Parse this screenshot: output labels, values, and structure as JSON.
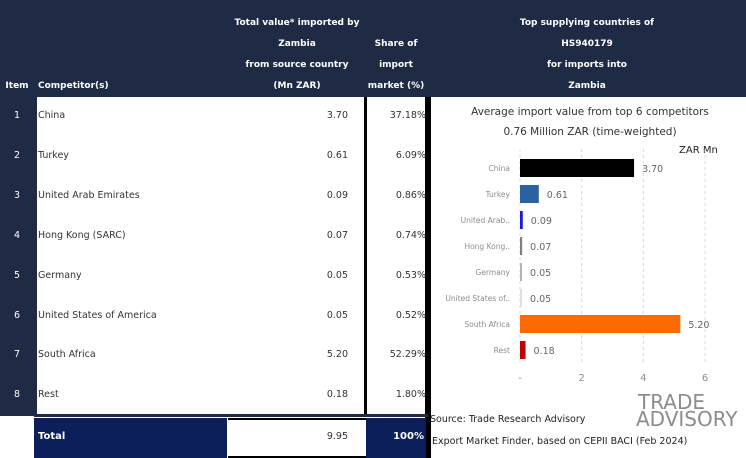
{
  "header": {
    "item": "Item",
    "competitor": "Competitor(s)",
    "total_value": [
      "Total value* imported by",
      "Zambia",
      "from source country",
      "(Mn ZAR)"
    ],
    "share": [
      "Share of",
      "import",
      "market (%)"
    ],
    "top_supplying": [
      "Top supplying countries of",
      "HS940179",
      "for imports into",
      "Zambia"
    ]
  },
  "rows": [
    {
      "item": "1",
      "name": "China",
      "value": "3.70",
      "share": "37.18%"
    },
    {
      "item": "2",
      "name": "Turkey",
      "value": "0.61",
      "share": "6.09%"
    },
    {
      "item": "3",
      "name": "United Arab Emirates",
      "value": "0.09",
      "share": "0.86%"
    },
    {
      "item": "4",
      "name": "Hong Kong (SARC)",
      "value": "0.07",
      "share": "0.74%"
    },
    {
      "item": "5",
      "name": "Germany",
      "value": "0.05",
      "share": "0.53%"
    },
    {
      "item": "6",
      "name": "United States of America",
      "value": "0.05",
      "share": "0.52%"
    },
    {
      "item": "7",
      "name": "South Africa",
      "value": "5.20",
      "share": "52.29%"
    },
    {
      "item": "8",
      "name": "Rest",
      "value": "0.18",
      "share": "1.80%"
    }
  ],
  "total": {
    "label": "Total",
    "value": "9.95",
    "share": "100%"
  },
  "chart_data": {
    "type": "bar",
    "orientation": "horizontal",
    "title": "Average import value from top 6 competitors",
    "subtitle": "0.76 Million ZAR (time-weighted)",
    "xlabel": "ZAR Mn",
    "ylabel": "",
    "categories": [
      "China",
      "Turkey",
      "United Arab..",
      "Hong Kong..",
      "Germany",
      "United States of..",
      "South Africa",
      "Rest"
    ],
    "values": [
      3.7,
      0.61,
      0.09,
      0.07,
      0.05,
      0.05,
      5.2,
      0.18
    ],
    "value_labels": [
      "3.70",
      "0.61",
      "0.09",
      "0.07",
      "0.05",
      "0.05",
      "5.20",
      "0.18"
    ],
    "colors": [
      "#000000",
      "#2a62a0",
      "#1a1adc",
      "#808080",
      "#b4b4b4",
      "#dedede",
      "#ff6a00",
      "#c00000"
    ],
    "xlim": [
      0,
      6
    ],
    "xticks": [
      0,
      2,
      4,
      6
    ],
    "xtick_labels": [
      "-",
      "2",
      "4",
      "6"
    ],
    "grid": true,
    "legend": "none"
  },
  "source": {
    "line1": "Source: Trade Research Advisory",
    "line2": "Export Market Finder, based on CEPII BACI (Feb 2024)"
  },
  "logo": {
    "line1": "TRADE",
    "line2": "ADVISORY"
  }
}
